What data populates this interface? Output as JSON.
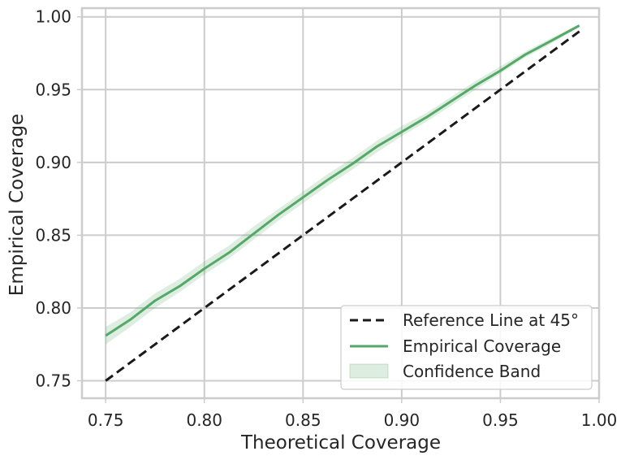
{
  "chart_data": {
    "type": "line",
    "xlabel": "Theoretical Coverage",
    "ylabel": "Empirical Coverage",
    "xlim": [
      0.738,
      1.0
    ],
    "ylim": [
      0.738,
      1.006
    ],
    "xticks": [
      "0.75",
      "0.80",
      "0.85",
      "0.90",
      "0.95",
      "1.00"
    ],
    "yticks": [
      "0.75",
      "0.80",
      "0.85",
      "0.90",
      "0.95",
      "1.00"
    ],
    "grid": true,
    "legend_position": "bottom-right",
    "series": [
      {
        "name": "Reference Line at 45°",
        "style": "dashed",
        "color": "#1a1a1a",
        "x": [
          0.75,
          0.99
        ],
        "y": [
          0.75,
          0.99
        ]
      },
      {
        "name": "Empirical Coverage",
        "style": "solid",
        "color": "#55a868",
        "x": [
          0.75,
          0.7625,
          0.775,
          0.7875,
          0.8,
          0.8125,
          0.825,
          0.8375,
          0.85,
          0.8625,
          0.875,
          0.8875,
          0.9,
          0.9125,
          0.925,
          0.9375,
          0.95,
          0.9625,
          0.975,
          0.99
        ],
        "y": [
          0.781,
          0.792,
          0.805,
          0.815,
          0.827,
          0.838,
          0.851,
          0.864,
          0.876,
          0.888,
          0.899,
          0.911,
          0.921,
          0.931,
          0.942,
          0.953,
          0.963,
          0.974,
          0.983,
          0.994
        ]
      },
      {
        "name": "Confidence Band",
        "style": "band",
        "color": "#55a868",
        "x": [
          0.75,
          0.7625,
          0.775,
          0.7875,
          0.8,
          0.8125,
          0.825,
          0.8375,
          0.85,
          0.8625,
          0.875,
          0.8875,
          0.9,
          0.9125,
          0.925,
          0.9375,
          0.95,
          0.9625,
          0.975,
          0.99
        ],
        "lower": [
          0.775,
          0.787,
          0.8,
          0.811,
          0.823,
          0.834,
          0.847,
          0.86,
          0.872,
          0.884,
          0.895,
          0.907,
          0.918,
          0.928,
          0.939,
          0.95,
          0.961,
          0.972,
          0.981,
          0.993
        ],
        "upper": [
          0.787,
          0.797,
          0.81,
          0.82,
          0.832,
          0.843,
          0.856,
          0.868,
          0.88,
          0.892,
          0.903,
          0.915,
          0.925,
          0.934,
          0.945,
          0.956,
          0.966,
          0.976,
          0.985,
          0.995
        ]
      }
    ]
  }
}
